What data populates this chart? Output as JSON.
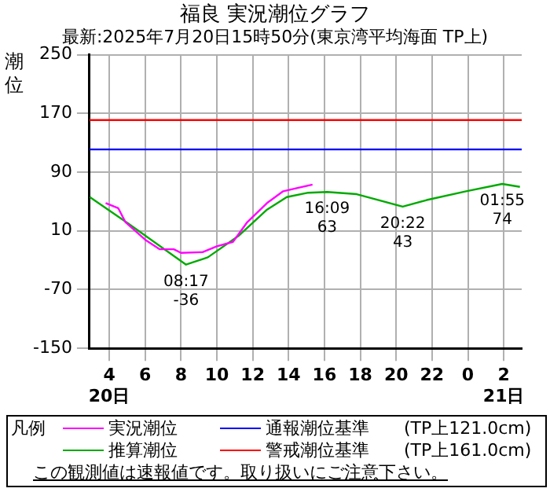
{
  "chart_data": {
    "type": "line",
    "title": "福良 実況潮位グラフ",
    "subtitle": "最新:2025年7月20日15時50分(東京湾平均海面 TP上)",
    "ylabel": "潮位",
    "legend_title": "凡例",
    "series": [
      {
        "name": "実況潮位",
        "color": "#ff00ff",
        "x": [
          "2025-07-20T03:48",
          "2025-07-20T04:30",
          "2025-07-20T04:54",
          "2025-07-20T06:00",
          "2025-07-20T06:48",
          "2025-07-20T07:36",
          "2025-07-20T08:00",
          "2025-07-20T09:12",
          "2025-07-20T10:00",
          "2025-07-20T10:54",
          "2025-07-20T11:42",
          "2025-07-20T12:48",
          "2025-07-20T13:42",
          "2025-07-20T14:36",
          "2025-07-20T15:20"
        ],
        "values": [
          48,
          41,
          22,
          -2,
          -15,
          -15,
          -20,
          -19,
          -11,
          -5,
          22,
          48,
          64,
          69,
          73
        ]
      },
      {
        "name": "推算潮位",
        "color": "#00aa00",
        "x": [
          "2025-07-20T02:55",
          "2025-07-20T05:04",
          "2025-07-20T08:17",
          "2025-07-20T09:30",
          "2025-07-20T11:12",
          "2025-07-20T12:48",
          "2025-07-20T13:54",
          "2025-07-20T15:06",
          "2025-07-20T16:09",
          "2025-07-20T17:48",
          "2025-07-20T20:22",
          "2025-07-20T21:42",
          "2025-07-20T23:54",
          "2025-07-21T01:55",
          "2025-07-21T02:54"
        ],
        "values": [
          56,
          20,
          -36,
          -26,
          3,
          39,
          56,
          62,
          63,
          60,
          43,
          52,
          64,
          74,
          70
        ]
      }
    ],
    "ref_lines": [
      {
        "axis": "y",
        "value": 121,
        "label": "通報潮位基準　　(TP上121.0cm)",
        "color": "#0000ff"
      },
      {
        "axis": "y",
        "value": 161,
        "label": "警戒潮位基準　　(TP上161.0cm)",
        "color": "#ff0000"
      }
    ],
    "annotations": [
      {
        "text": "08:17\n-36",
        "x": "2025-07-20T08:17",
        "y": -36
      },
      {
        "text": "16:09\n63",
        "x": "2025-07-20T16:09",
        "y": 63
      },
      {
        "text": "20:22\n43",
        "x": "2025-07-20T20:22",
        "y": 43
      },
      {
        "text": "01:55\n74",
        "x": "2025-07-21T01:55",
        "y": 74
      },
      "この観測値は速報値です。取り扱いにご注意下さい。"
    ],
    "xlim": [
      "2025-07-20T02:54",
      "2025-07-21T03:00"
    ],
    "xticks": [
      {
        "value": "2025-07-20T04:00",
        "label": "4\n20日"
      },
      {
        "value": "2025-07-20T06:00",
        "label": "6"
      },
      {
        "value": "2025-07-20T08:00",
        "label": "8"
      },
      {
        "value": "2025-07-20T10:00",
        "label": "10"
      },
      {
        "value": "2025-07-20T12:00",
        "label": "12"
      },
      {
        "value": "2025-07-20T14:00",
        "label": "14"
      },
      {
        "value": "2025-07-20T16:00",
        "label": "16"
      },
      {
        "value": "2025-07-20T18:00",
        "label": "18"
      },
      {
        "value": "2025-07-20T20:00",
        "label": "20"
      },
      {
        "value": "2025-07-20T22:00",
        "label": "22"
      },
      {
        "value": "2025-07-21T00:00",
        "label": "0"
      },
      {
        "value": "2025-07-21T02:00",
        "label": "2\n21日"
      }
    ],
    "ylim": [
      -150,
      250
    ],
    "yticks": [
      -150,
      -70,
      10,
      90,
      170,
      250
    ],
    "grid": true,
    "legend": "bottom",
    "marker": "none",
    "line_style": "solid"
  }
}
